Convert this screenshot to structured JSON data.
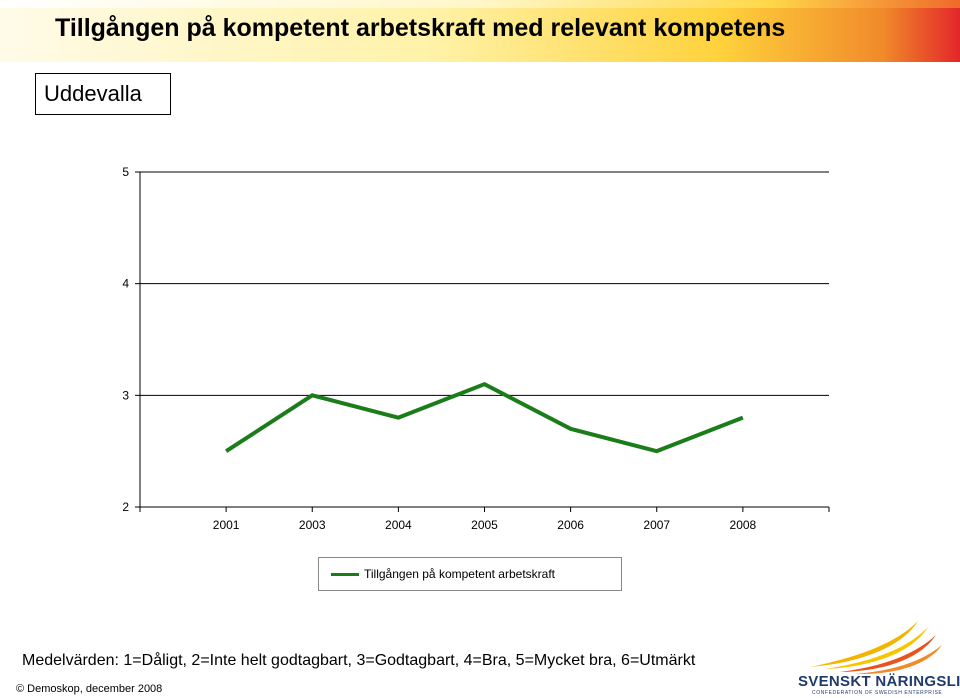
{
  "page": {
    "title": "Tillgången på kompetent arbetskraft med relevant kompetens",
    "region": "Uddevalla",
    "note": "Medelvärden: 1=Dåligt, 2=Inte helt godtagbart, 3=Godtagbart, 4=Bra, 5=Mycket bra, 6=Utmärkt",
    "copyright": "© Demoskop, december 2008"
  },
  "logo": {
    "name": "SVENSKT NÄRINGSLIV",
    "subtitle": "CONFEDERATION OF SWEDISH ENTERPRISE",
    "colors": [
      "#f4b400",
      "#e8541e",
      "#1f3a6b"
    ]
  },
  "chart_data": {
    "type": "line",
    "categories": [
      "2001",
      "2003",
      "2004",
      "2005",
      "2006",
      "2007",
      "2008"
    ],
    "series": [
      {
        "name": "Tillgången på kompetent arbetskraft",
        "values": [
          2.5,
          3.0,
          2.8,
          3.1,
          2.7,
          2.5,
          2.8
        ],
        "color": "#1a7d1a"
      }
    ],
    "ylim": [
      2,
      5
    ],
    "yticks": [
      "2",
      "3",
      "4",
      "5"
    ],
    "grid": true,
    "legend": "bottom"
  }
}
